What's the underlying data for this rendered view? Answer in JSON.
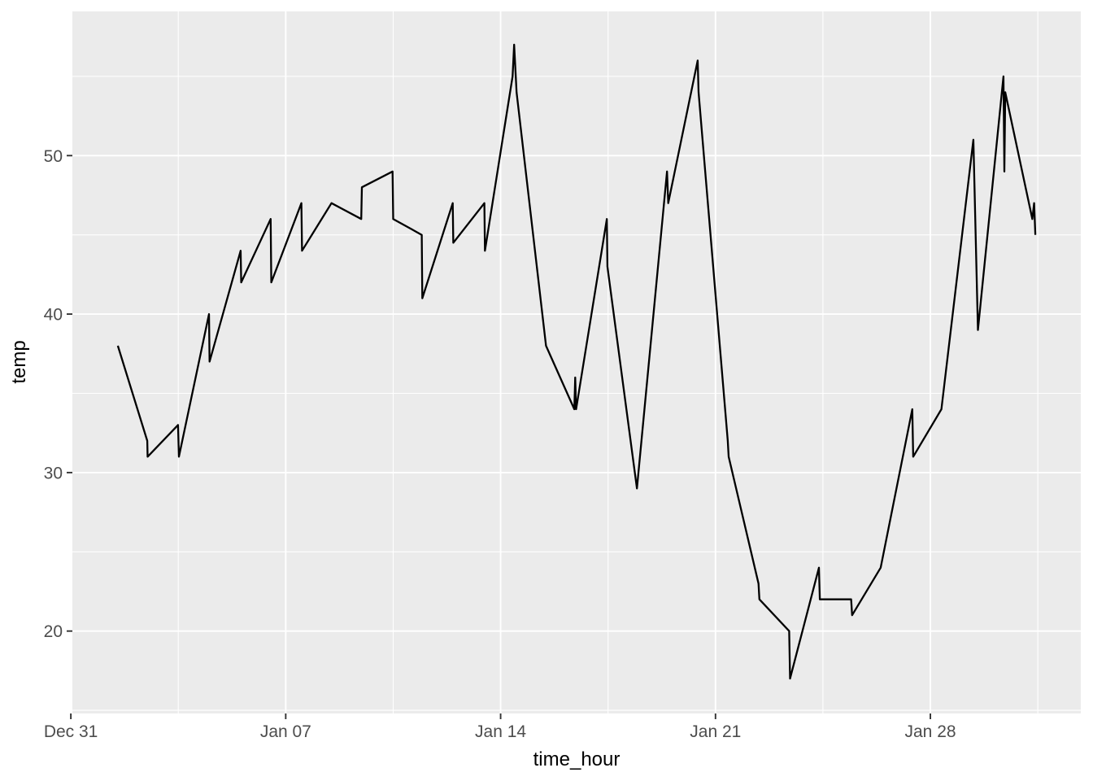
{
  "chart_data": {
    "type": "line",
    "title": "",
    "xlabel": "time_hour",
    "ylabel": "temp",
    "legend": "none",
    "grid": true,
    "x_axis": {
      "tick_labels": [
        "Dec 31",
        "Jan 07",
        "Jan 14",
        "Jan 21",
        "Jan 28"
      ],
      "tick_days": [
        0,
        7,
        14,
        21,
        28
      ],
      "minor_days": [
        3.5,
        10.5,
        17.5,
        24.5,
        31.5
      ],
      "range_days": [
        0.05,
        32.9
      ]
    },
    "y_axis": {
      "tick_labels": [
        "20",
        "30",
        "40",
        "50"
      ],
      "tick_values": [
        20,
        30,
        40,
        50
      ],
      "minor_values": [
        15,
        25,
        35,
        45,
        55
      ],
      "range": [
        14.8,
        59.1
      ]
    },
    "series": [
      {
        "name": "temp",
        "color": "#000000",
        "points": [
          [
            1.53,
            38
          ],
          [
            2.49,
            32
          ],
          [
            2.5,
            31
          ],
          [
            3.49,
            33
          ],
          [
            3.52,
            31
          ],
          [
            4.5,
            40
          ],
          [
            4.52,
            37
          ],
          [
            5.53,
            44
          ],
          [
            5.55,
            42
          ],
          [
            6.51,
            46
          ],
          [
            6.53,
            42
          ],
          [
            7.51,
            47
          ],
          [
            7.53,
            44
          ],
          [
            8.49,
            47
          ],
          [
            9.46,
            46
          ],
          [
            9.48,
            48
          ],
          [
            10.48,
            49
          ],
          [
            10.5,
            46
          ],
          [
            11.43,
            45
          ],
          [
            11.45,
            41
          ],
          [
            12.44,
            47
          ],
          [
            12.46,
            44.5
          ],
          [
            13.47,
            47
          ],
          [
            13.49,
            44
          ],
          [
            14.39,
            55
          ],
          [
            14.44,
            57
          ],
          [
            14.52,
            54
          ],
          [
            15.48,
            38
          ],
          [
            16.4,
            34
          ],
          [
            16.43,
            36
          ],
          [
            16.46,
            34
          ],
          [
            17.46,
            46
          ],
          [
            17.48,
            43
          ],
          [
            18.44,
            29
          ],
          [
            19.42,
            49
          ],
          [
            19.46,
            47
          ],
          [
            20.42,
            56
          ],
          [
            20.45,
            54
          ],
          [
            21.4,
            32
          ],
          [
            21.43,
            31
          ],
          [
            22.4,
            23
          ],
          [
            22.43,
            22
          ],
          [
            23.4,
            20
          ],
          [
            23.43,
            17
          ],
          [
            24.37,
            24
          ],
          [
            24.4,
            22
          ],
          [
            25.42,
            22
          ],
          [
            25.45,
            21
          ],
          [
            26.38,
            24
          ],
          [
            27.41,
            34
          ],
          [
            27.44,
            31
          ],
          [
            28.36,
            34
          ],
          [
            29.4,
            51
          ],
          [
            29.55,
            39
          ],
          [
            30.38,
            55
          ],
          [
            30.41,
            49
          ],
          [
            30.44,
            54
          ],
          [
            31.32,
            46
          ],
          [
            31.38,
            47
          ],
          [
            31.42,
            45
          ]
        ]
      }
    ]
  },
  "style": {
    "panel_bg": "#ebebeb",
    "grid_color": "#ffffff",
    "line_color": "#000000",
    "tick_color": "#333333",
    "tick_label_color": "#4d4d4d",
    "axis_title_color": "#000000"
  }
}
